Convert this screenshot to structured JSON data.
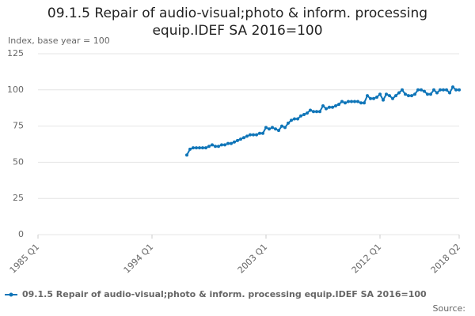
{
  "chart_data": {
    "type": "line",
    "title": "09.1.5 Repair of audio-visual;photo & inform. processing equip.IDEF SA 2016=100",
    "y_label": "Index, base year = 100",
    "source": "Source:",
    "categories": [
      "1985 Q1",
      null,
      null,
      null,
      null,
      null,
      null,
      null,
      null,
      null,
      null,
      null,
      null,
      null,
      null,
      null,
      null,
      null,
      null,
      null,
      null,
      null,
      null,
      null,
      null,
      null,
      null,
      null,
      null,
      null,
      null,
      null,
      null,
      null,
      null,
      null,
      "1994 Q1",
      null,
      null,
      null,
      null,
      null,
      null,
      null,
      null,
      null,
      null,
      null,
      null,
      null,
      null,
      null,
      null,
      null,
      null,
      null,
      null,
      null,
      null,
      null,
      null,
      null,
      null,
      null,
      null,
      null,
      null,
      null,
      null,
      null,
      null,
      null,
      "2003 Q1",
      null,
      null,
      null,
      null,
      null,
      null,
      null,
      null,
      null,
      null,
      null,
      null,
      null,
      null,
      null,
      null,
      null,
      null,
      null,
      null,
      null,
      null,
      null,
      null,
      null,
      null,
      null,
      null,
      null,
      null,
      null,
      null,
      null,
      null,
      null,
      "2012 Q1",
      null,
      null,
      null,
      null,
      null,
      null,
      null,
      null,
      null,
      null,
      null,
      null,
      null,
      null,
      null,
      null,
      null,
      null,
      null,
      null,
      null,
      null,
      null,
      null,
      "2018 Q2"
    ],
    "series": [
      {
        "name": "09.1.5 Repair of audio-visual;photo & inform. processing equip.IDEF SA 2016=100",
        "color": "#0f75b8",
        "values": [
          null,
          null,
          null,
          null,
          null,
          null,
          null,
          null,
          null,
          null,
          null,
          null,
          null,
          null,
          null,
          null,
          null,
          null,
          null,
          null,
          null,
          null,
          null,
          null,
          null,
          null,
          null,
          null,
          null,
          null,
          null,
          null,
          null,
          null,
          null,
          null,
          null,
          null,
          null,
          null,
          null,
          null,
          null,
          null,
          null,
          null,
          null,
          55,
          59,
          60,
          60,
          60,
          60,
          60,
          61,
          62,
          61,
          61,
          62,
          62,
          63,
          63,
          64,
          65,
          66,
          67,
          68,
          69,
          69,
          69,
          70,
          70,
          74,
          73,
          74,
          73,
          72,
          75,
          74,
          77,
          79,
          80,
          80,
          82,
          83,
          84,
          86,
          85,
          85,
          85,
          89,
          87,
          88,
          88,
          89,
          90,
          92,
          91,
          92,
          92,
          92,
          92,
          91,
          91,
          96,
          94,
          94,
          95,
          97,
          93,
          97,
          96,
          94,
          96,
          98,
          100,
          97,
          96,
          96,
          97,
          100,
          100,
          99,
          97,
          97,
          100,
          98,
          100,
          100,
          100,
          98,
          102,
          100,
          100
        ]
      }
    ],
    "ylim": [
      0,
      125
    ],
    "yticks": [
      0,
      25,
      50,
      75,
      100,
      125
    ],
    "grid": true
  }
}
